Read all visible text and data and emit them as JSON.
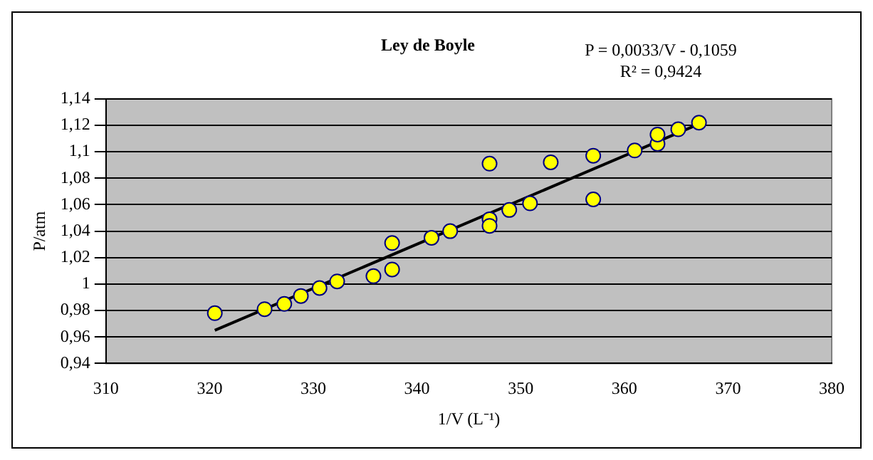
{
  "chart_data": {
    "type": "scatter",
    "title": "Ley de Boyle",
    "xlabel": "1/V (L⁻¹)",
    "ylabel": "P/atm",
    "annotations": [
      "P = 0,0033/V - 0,1059",
      "R² = 0,9424"
    ],
    "series": [
      {
        "marker": "circle",
        "color": "#ffff00",
        "x": [
          320.5,
          325.3,
          327.2,
          328.8,
          330.6,
          332.3,
          335.8,
          337.6,
          337.6,
          341.4,
          343.2,
          347.0,
          347.0,
          347.0,
          348.9,
          350.9,
          352.9,
          357.0,
          357.0,
          361.0,
          363.2,
          363.2,
          365.2,
          367.2
        ],
        "values": [
          0.978,
          0.981,
          0.985,
          0.991,
          0.997,
          1.002,
          1.006,
          1.031,
          1.011,
          1.035,
          1.04,
          1.091,
          1.049,
          1.044,
          1.056,
          1.061,
          1.092,
          1.097,
          1.064,
          1.101,
          1.106,
          1.113,
          1.117,
          1.122
        ]
      },
      {
        "type": "line",
        "marker": "none",
        "color": "#000000",
        "x": [
          320.5,
          367.2
        ],
        "values": [
          0.965,
          1.121
        ]
      }
    ],
    "xlim": [
      310,
      380
    ],
    "xticks": [
      310,
      320,
      330,
      340,
      350,
      360,
      370,
      380
    ],
    "ylim": [
      0.94,
      1.14
    ],
    "yticks": [
      {
        "value": 0.94,
        "label": "0,94"
      },
      {
        "value": 0.96,
        "label": "0,96"
      },
      {
        "value": 0.98,
        "label": "0,98"
      },
      {
        "value": 1,
        "label": "1"
      },
      {
        "value": 1.02,
        "label": "1,02"
      },
      {
        "value": 1.04,
        "label": "1,04"
      },
      {
        "value": 1.06,
        "label": "1,06"
      },
      {
        "value": 1.08,
        "label": "1,08"
      },
      {
        "value": 1.1,
        "label": "1,1"
      },
      {
        "value": 1.12,
        "label": "1,12"
      },
      {
        "value": 1.14,
        "label": "1,14"
      }
    ],
    "grid": "y",
    "legend": false
  }
}
